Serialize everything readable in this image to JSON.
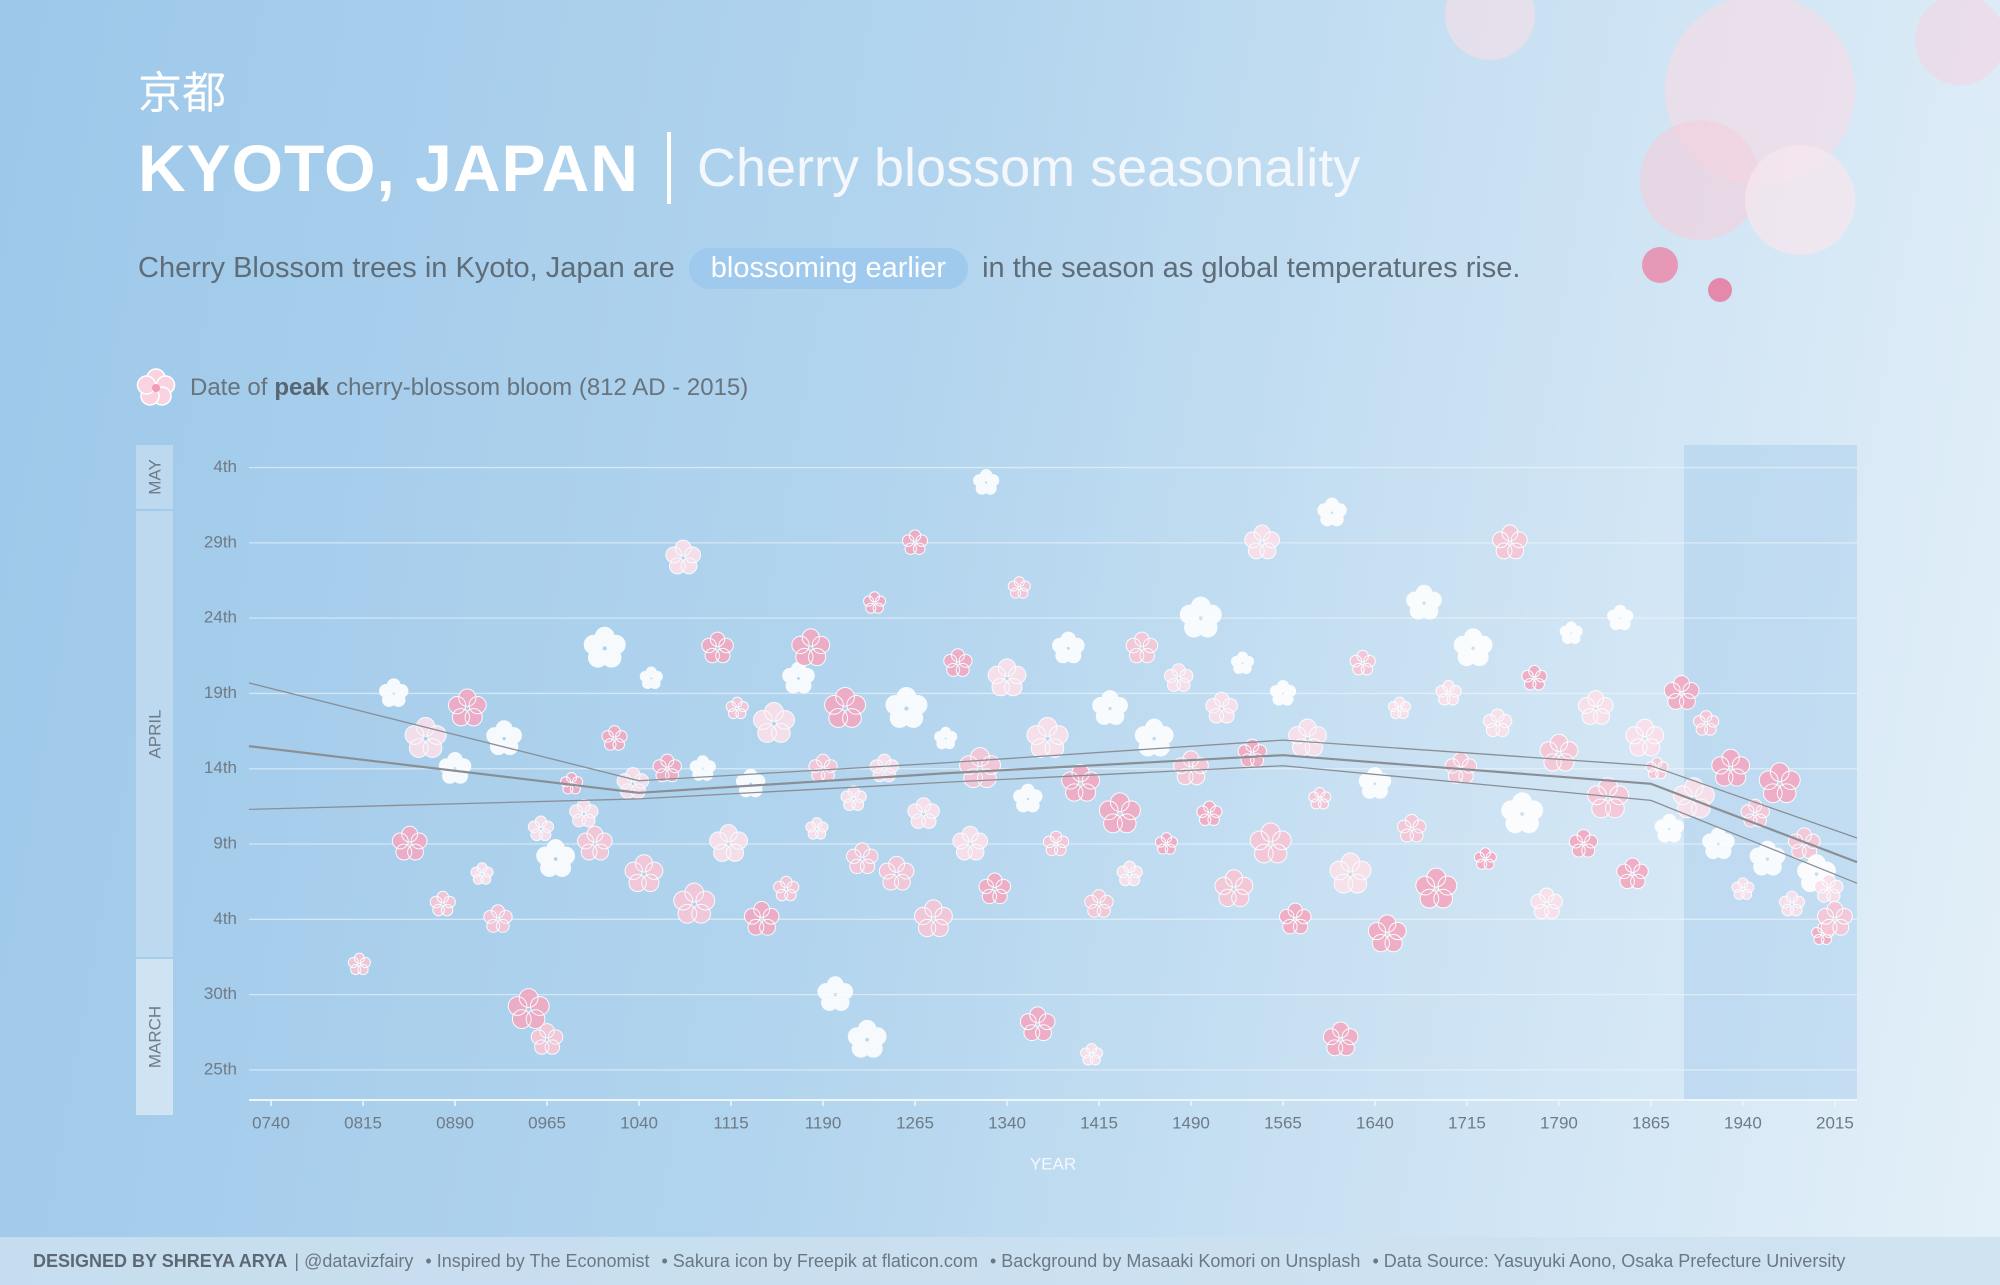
{
  "header": {
    "kanji": "京都",
    "title": "KYOTO, JAPAN",
    "subtitle": "Cherry blossom seasonality",
    "description_pre": "Cherry Blossom trees in Kyoto, Japan are",
    "description_highlight": "blossoming earlier",
    "description_post": "in the season as global temperatures rise."
  },
  "legend": {
    "pre": "Date of",
    "bold": "peak",
    "post": "cherry-blossom bloom (812 AD - 2015)"
  },
  "months": [
    "MAY",
    "APRIL",
    "MARCH"
  ],
  "chart_data": {
    "type": "scatter",
    "x_label": "YEAR",
    "xlim": [
      722,
      2033
    ],
    "xticks": [
      {
        "value": 740,
        "label": "0740"
      },
      {
        "value": 815,
        "label": "0815"
      },
      {
        "value": 890,
        "label": "0890"
      },
      {
        "value": 965,
        "label": "0965"
      },
      1040,
      1115,
      1190,
      1265,
      1340,
      1415,
      1490,
      1565,
      1640,
      1715,
      1790,
      1865,
      1940,
      2015
    ],
    "ylim": [
      82,
      125.5
    ],
    "yticks": [
      {
        "value": 84,
        "label": "25th"
      },
      {
        "value": 89,
        "label": "30th"
      },
      {
        "value": 94,
        "label": "4th"
      },
      {
        "value": 99,
        "label": "9th"
      },
      {
        "value": 104,
        "label": "14th"
      },
      {
        "value": 109,
        "label": "19th"
      },
      {
        "value": 114,
        "label": "24th"
      },
      {
        "value": 119,
        "label": "29th"
      },
      {
        "value": 124,
        "label": "4th"
      }
    ],
    "grid": true,
    "x": [
      812,
      840,
      853,
      866,
      880,
      890,
      900,
      912,
      925,
      930,
      950,
      960,
      965,
      972,
      985,
      995,
      1004,
      1012,
      1020,
      1035,
      1044,
      1050,
      1063,
      1076,
      1085,
      1092,
      1104,
      1113,
      1120,
      1131,
      1140,
      1150,
      1160,
      1170,
      1180,
      1185,
      1190,
      1200,
      1208,
      1215,
      1222,
      1226,
      1232,
      1240,
      1250,
      1258,
      1265,
      1272,
      1280,
      1290,
      1300,
      1310,
      1318,
      1323,
      1330,
      1340,
      1350,
      1357,
      1365,
      1373,
      1380,
      1390,
      1400,
      1409,
      1415,
      1424,
      1432,
      1440,
      1450,
      1460,
      1470,
      1480,
      1490,
      1498,
      1505,
      1515,
      1525,
      1532,
      1540,
      1548,
      1555,
      1565,
      1575,
      1585,
      1595,
      1605,
      1612,
      1620,
      1630,
      1640,
      1650,
      1660,
      1670,
      1680,
      1690,
      1700,
      1710,
      1720,
      1730,
      1740,
      1750,
      1760,
      1770,
      1780,
      1790,
      1800,
      1810,
      1820,
      1830,
      1840,
      1850,
      1860,
      1870,
      1880,
      1890,
      1900,
      1910,
      1920,
      1930,
      1940,
      1950,
      1960,
      1970,
      1980,
      1990,
      2000,
      2005,
      2010,
      2015
    ],
    "values": [
      91,
      109,
      99,
      106,
      95,
      104,
      108,
      97,
      94,
      106,
      88,
      100,
      86,
      98,
      103,
      101,
      99,
      112,
      106,
      103,
      97,
      110,
      104,
      118,
      95,
      104,
      112,
      99,
      108,
      103,
      94,
      107,
      96,
      110,
      112,
      100,
      104,
      89,
      108,
      102,
      98,
      86,
      115,
      104,
      97,
      108,
      119,
      101,
      94,
      106,
      111,
      99,
      104,
      123,
      96,
      110,
      116,
      102,
      87,
      106,
      99,
      112,
      103,
      85,
      95,
      108,
      101,
      97,
      112,
      106,
      99,
      110,
      104,
      114,
      101,
      108,
      96,
      111,
      105,
      119,
      99,
      109,
      94,
      106,
      102,
      121,
      86,
      97,
      111,
      103,
      93,
      108,
      100,
      115,
      96,
      109,
      104,
      112,
      98,
      107,
      119,
      101,
      110,
      95,
      105,
      113,
      99,
      108,
      102,
      114,
      97,
      106,
      104,
      100,
      109,
      102,
      107,
      99,
      104,
      96,
      101,
      98,
      103,
      95,
      99,
      97,
      93,
      96,
      94
    ],
    "colors": [
      "#f7c6d6",
      "#ffffff",
      "#f2a9c2",
      "#fbe0ea"
    ],
    "trend": {
      "color": "#8a8f96",
      "x": [
        722,
        1040,
        1290,
        1565,
        1865,
        2033
      ],
      "values": [
        105.5,
        102.4,
        103.7,
        104.9,
        103,
        97.8
      ],
      "upper": [
        109.7,
        103.2,
        104.4,
        105.9,
        104.2,
        99.4
      ],
      "lower": [
        101.3,
        102,
        103.1,
        104.2,
        101.9,
        96.4
      ]
    }
  },
  "footer": {
    "credit": "DESIGNED BY SHREYA ARYA",
    "handle": "| @datavizfairy",
    "items": [
      "• Inspired by The Economist",
      "• Sakura icon by Freepik at flaticon.com",
      "• Background by Masaaki Komori on Unsplash",
      "• Data Source: Yasuyuki Aono, Osaka Prefecture University"
    ]
  }
}
